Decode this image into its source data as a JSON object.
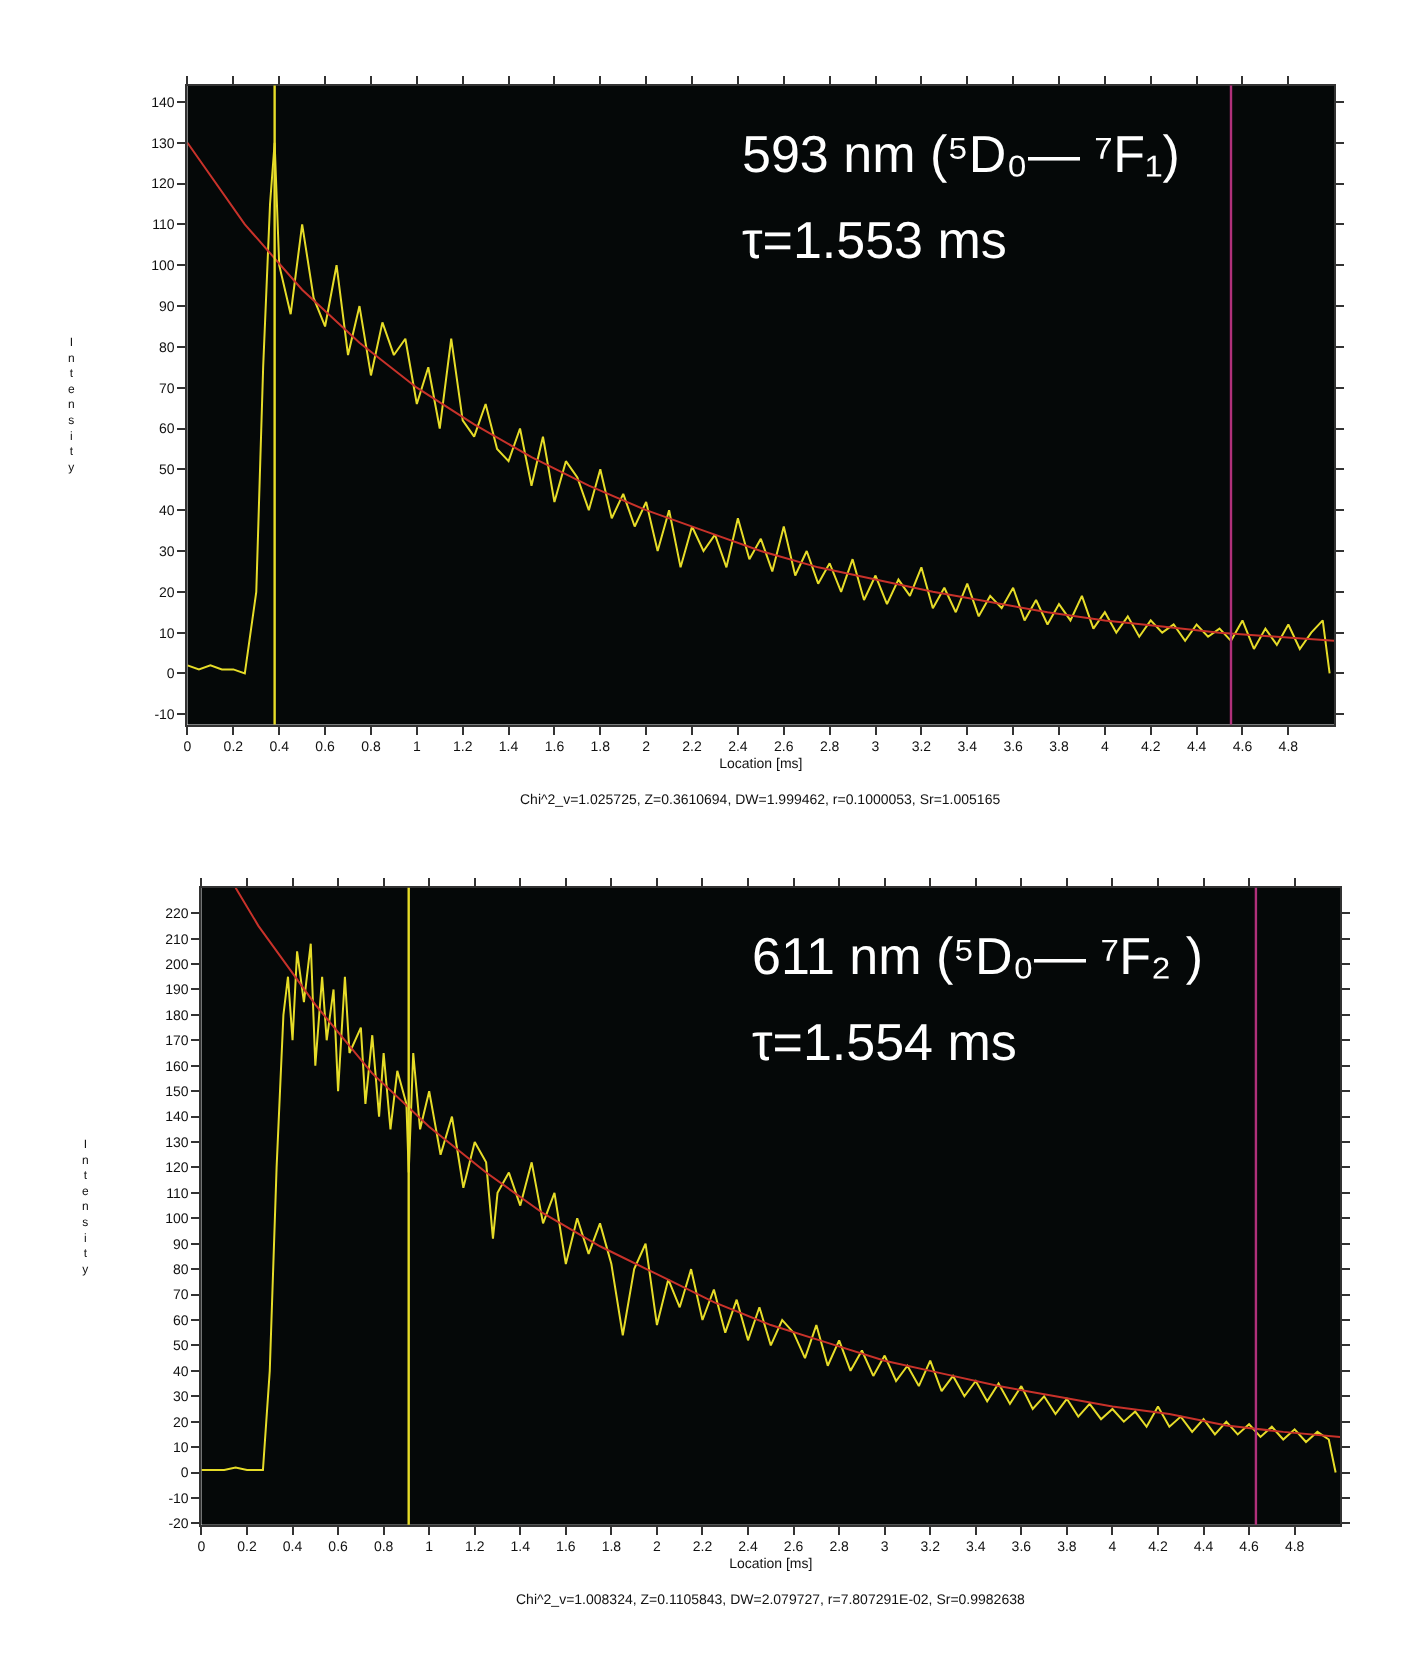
{
  "chart_data": [
    {
      "type": "line",
      "xlabel": "Location [ms]",
      "ylabel": "Intensity",
      "grid": false,
      "xlim": [
        0,
        5.0
      ],
      "ylim": [
        -12.5,
        144
      ],
      "xticks": [
        0,
        0.2,
        0.4,
        0.6,
        0.8,
        1,
        1.2,
        1.4,
        1.6,
        1.8,
        2,
        2.2,
        2.4,
        2.6,
        2.8,
        3,
        3.2,
        3.4,
        3.6,
        3.8,
        4,
        4.2,
        4.4,
        4.6,
        4.8
      ],
      "yticks": [
        -10,
        0,
        10,
        20,
        30,
        40,
        50,
        60,
        70,
        80,
        90,
        100,
        110,
        120,
        130,
        140
      ],
      "series": [
        {
          "color": "#e6dc28",
          "x": [
            0,
            0.05,
            0.1,
            0.15,
            0.2,
            0.25,
            0.3,
            0.33,
            0.36,
            0.38,
            0.4,
            0.45,
            0.5,
            0.55,
            0.6,
            0.65,
            0.7,
            0.75,
            0.8,
            0.85,
            0.9,
            0.95,
            1.0,
            1.05,
            1.1,
            1.15,
            1.2,
            1.25,
            1.3,
            1.35,
            1.4,
            1.45,
            1.5,
            1.55,
            1.6,
            1.65,
            1.7,
            1.75,
            1.8,
            1.85,
            1.9,
            1.95,
            2.0,
            2.05,
            2.1,
            2.15,
            2.2,
            2.25,
            2.3,
            2.35,
            2.4,
            2.45,
            2.5,
            2.55,
            2.6,
            2.65,
            2.7,
            2.75,
            2.8,
            2.85,
            2.9,
            2.95,
            3.0,
            3.05,
            3.1,
            3.15,
            3.2,
            3.25,
            3.3,
            3.35,
            3.4,
            3.45,
            3.5,
            3.55,
            3.6,
            3.65,
            3.7,
            3.75,
            3.8,
            3.85,
            3.9,
            3.95,
            4.0,
            4.05,
            4.1,
            4.15,
            4.2,
            4.25,
            4.3,
            4.35,
            4.4,
            4.45,
            4.5,
            4.55,
            4.6,
            4.65,
            4.7,
            4.75,
            4.8,
            4.85,
            4.9,
            4.95,
            4.98
          ],
          "values": [
            2,
            1,
            2,
            1,
            1,
            0,
            20,
            75,
            115,
            130,
            100,
            88,
            110,
            92,
            85,
            100,
            78,
            90,
            73,
            86,
            78,
            82,
            66,
            75,
            60,
            82,
            62,
            58,
            66,
            55,
            52,
            60,
            46,
            58,
            42,
            52,
            48,
            40,
            50,
            38,
            44,
            36,
            42,
            30,
            40,
            26,
            36,
            30,
            34,
            26,
            38,
            28,
            33,
            25,
            36,
            24,
            30,
            22,
            27,
            20,
            28,
            18,
            24,
            17,
            23,
            19,
            26,
            16,
            21,
            15,
            22,
            14,
            19,
            16,
            21,
            13,
            18,
            12,
            17,
            13,
            19,
            11,
            15,
            10,
            14,
            9,
            13,
            10,
            12,
            8,
            12,
            9,
            11,
            8,
            13,
            6,
            11,
            7,
            12,
            6,
            10,
            13,
            0
          ]
        },
        {
          "color": "#c8322a",
          "x": [
            0,
            0.25,
            0.5,
            0.75,
            1.0,
            1.25,
            1.5,
            1.75,
            2.0,
            2.25,
            2.5,
            2.75,
            3.0,
            3.25,
            3.5,
            3.75,
            4.0,
            4.25,
            4.5,
            4.75,
            5.0
          ],
          "values": [
            130,
            110,
            94,
            81,
            70,
            61,
            53,
            46,
            40,
            35,
            30,
            26,
            23,
            20,
            17.5,
            15,
            13,
            11.5,
            10,
            9,
            8
          ]
        }
      ],
      "ref_lines": [
        {
          "axis": "x",
          "value": 0.38,
          "color": "#e6dc28"
        },
        {
          "axis": "x",
          "value": 4.55,
          "color": "#b0307a"
        }
      ],
      "annotations": [
        "593 nm (⁵D₀— ⁷F₁)",
        "τ=1.553 ms",
        "Chi^2_v=1.025725, Z=0.3610694, DW=1.999462, r=0.1000053, Sr=1.005165"
      ]
    },
    {
      "type": "line",
      "xlabel": "Location [ms]",
      "ylabel": "Intensity",
      "grid": false,
      "xlim": [
        0,
        5.0
      ],
      "ylim": [
        -20.5,
        230
      ],
      "xticks": [
        0,
        0.2,
        0.4,
        0.6,
        0.8,
        1,
        1.2,
        1.4,
        1.6,
        1.8,
        2,
        2.2,
        2.4,
        2.6,
        2.8,
        3,
        3.2,
        3.4,
        3.6,
        3.8,
        4,
        4.2,
        4.4,
        4.6,
        4.8
      ],
      "yticks": [
        -20,
        -10,
        0,
        10,
        20,
        30,
        40,
        50,
        60,
        70,
        80,
        90,
        100,
        110,
        120,
        130,
        140,
        150,
        160,
        170,
        180,
        190,
        200,
        210,
        220
      ],
      "series": [
        {
          "color": "#e6dc28",
          "x": [
            0,
            0.05,
            0.1,
            0.15,
            0.2,
            0.25,
            0.27,
            0.3,
            0.33,
            0.36,
            0.38,
            0.4,
            0.42,
            0.45,
            0.48,
            0.5,
            0.53,
            0.55,
            0.58,
            0.6,
            0.63,
            0.65,
            0.7,
            0.72,
            0.75,
            0.78,
            0.8,
            0.83,
            0.86,
            0.9,
            0.91,
            0.93,
            0.96,
            1.0,
            1.05,
            1.1,
            1.15,
            1.2,
            1.25,
            1.28,
            1.3,
            1.35,
            1.4,
            1.45,
            1.5,
            1.55,
            1.6,
            1.65,
            1.7,
            1.75,
            1.8,
            1.85,
            1.9,
            1.95,
            2.0,
            2.05,
            2.1,
            2.15,
            2.2,
            2.25,
            2.3,
            2.35,
            2.4,
            2.45,
            2.5,
            2.55,
            2.6,
            2.65,
            2.7,
            2.75,
            2.8,
            2.85,
            2.9,
            2.95,
            3.0,
            3.05,
            3.1,
            3.15,
            3.2,
            3.25,
            3.3,
            3.35,
            3.4,
            3.45,
            3.5,
            3.55,
            3.6,
            3.65,
            3.7,
            3.75,
            3.8,
            3.85,
            3.9,
            3.95,
            4.0,
            4.05,
            4.1,
            4.15,
            4.2,
            4.25,
            4.3,
            4.35,
            4.4,
            4.45,
            4.5,
            4.55,
            4.6,
            4.65,
            4.7,
            4.75,
            4.8,
            4.85,
            4.9,
            4.95,
            4.98
          ],
          "values": [
            1,
            1,
            1,
            2,
            1,
            1,
            1,
            40,
            120,
            180,
            195,
            170,
            205,
            185,
            208,
            160,
            195,
            170,
            190,
            150,
            195,
            165,
            175,
            145,
            172,
            140,
            165,
            135,
            158,
            145,
            118,
            165,
            135,
            150,
            125,
            140,
            112,
            130,
            122,
            92,
            110,
            118,
            105,
            122,
            98,
            110,
            82,
            100,
            86,
            98,
            82,
            54,
            80,
            90,
            58,
            76,
            65,
            80,
            60,
            72,
            55,
            68,
            52,
            65,
            50,
            60,
            55,
            45,
            58,
            42,
            52,
            40,
            48,
            38,
            46,
            36,
            42,
            34,
            44,
            32,
            38,
            30,
            36,
            28,
            35,
            27,
            34,
            25,
            30,
            23,
            29,
            22,
            27,
            21,
            25,
            20,
            24,
            18,
            26,
            18,
            22,
            16,
            21,
            15,
            20,
            15,
            19,
            14,
            18,
            13,
            17,
            12,
            16,
            13,
            0
          ]
        },
        {
          "color": "#c8322a",
          "x": [
            0.15,
            0.25,
            0.5,
            0.75,
            1.0,
            1.25,
            1.5,
            1.75,
            2.0,
            2.25,
            2.5,
            2.75,
            3.0,
            3.25,
            3.5,
            3.75,
            4.0,
            4.25,
            4.5,
            4.75,
            5.0
          ],
          "values": [
            230,
            215,
            184,
            157,
            136,
            118,
            102,
            89,
            78,
            67,
            58,
            51,
            44,
            39,
            34,
            30,
            26,
            23,
            18.5,
            16,
            14
          ]
        }
      ],
      "ref_lines": [
        {
          "axis": "x",
          "value": 0.91,
          "color": "#e6dc28"
        },
        {
          "axis": "x",
          "value": 4.63,
          "color": "#b0307a"
        }
      ],
      "annotations": [
        "611 nm (⁵D₀— ⁷F₂ )",
        "τ=1.554 ms",
        "Chi^2_v=1.008324, Z=0.1105843, DW=2.079727, r=7.807291E-02, Sr=0.9982638"
      ]
    }
  ]
}
